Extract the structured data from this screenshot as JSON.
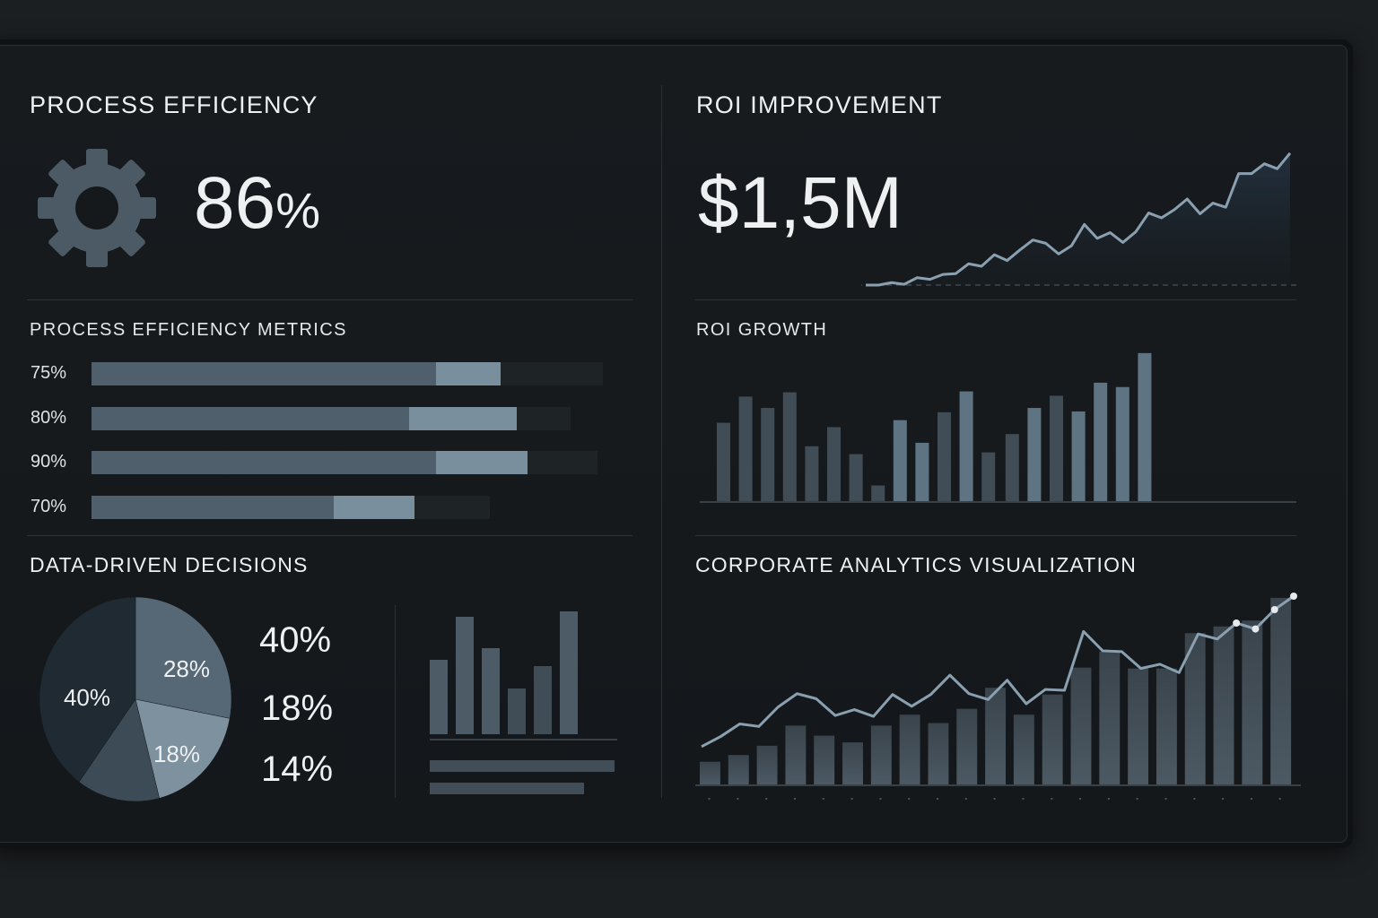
{
  "process_efficiency": {
    "title": "PROCESS EFFICIENCY",
    "icon": "gear-icon",
    "value": "86",
    "unit": "%"
  },
  "roi_improvement": {
    "title": "ROI IMPROVEMENT",
    "value": "$1,5M"
  },
  "metrics": {
    "title": "PROCESS EFFICIENCY METRICS",
    "rows": [
      {
        "label": "75%",
        "base": 0.64,
        "fill": 0.76,
        "track": 0.95
      },
      {
        "label": "80%",
        "base": 0.59,
        "fill": 0.79,
        "track": 0.89
      },
      {
        "label": "90%",
        "base": 0.64,
        "fill": 0.81,
        "track": 0.94
      },
      {
        "label": "70%",
        "base": 0.45,
        "fill": 0.6,
        "track": 0.74
      }
    ]
  },
  "decisions": {
    "title": "DATA-DRIVEN DECISIONS",
    "legend": [
      "40%",
      "18%",
      "14%"
    ]
  },
  "roi_growth": {
    "title": "ROI GROWTH"
  },
  "corporate": {
    "title": "CORPORATE ANALYTICS VISUALIZATION"
  },
  "colors": {
    "background": "#15191c",
    "bar": "#4a5863",
    "bar_light": "#6b8192",
    "line": "#8aa0b0",
    "pie_dark": "#1f2a32",
    "pie_mid": "#566876",
    "pie_light": "#7e919f",
    "pie_slate": "#3d4b56"
  },
  "chart_data": [
    {
      "type": "line",
      "chart": "roi-improvement-trend",
      "values": [
        0,
        0,
        3,
        1,
        9,
        7,
        13,
        14,
        26,
        23,
        37,
        30,
        43,
        55,
        51,
        38,
        48,
        74,
        57,
        64,
        52,
        65,
        88,
        82,
        92,
        105,
        87,
        100,
        95,
        136,
        136,
        148,
        142,
        161
      ],
      "ylim": [
        0,
        175
      ],
      "baseline": "dashed",
      "area_fill": true
    },
    {
      "type": "bar",
      "chart": "roi-growth",
      "values": [
        90,
        120,
        107,
        125,
        63,
        85,
        54,
        18,
        93,
        67,
        102,
        126,
        56,
        77,
        107,
        121,
        103,
        136,
        131,
        170
      ],
      "highlight": [
        false,
        false,
        false,
        false,
        false,
        false,
        false,
        false,
        true,
        true,
        false,
        true,
        false,
        false,
        true,
        false,
        true,
        true,
        true,
        true
      ],
      "ylim": [
        0,
        175
      ]
    },
    {
      "type": "pie",
      "chart": "data-driven-decisions",
      "slices": [
        {
          "label": "28%",
          "value": 28,
          "color": "#566876"
        },
        {
          "label": "18%",
          "value": 18,
          "color": "#7e919f"
        },
        {
          "label": "",
          "value": 14,
          "color": "#3d4b56"
        },
        {
          "label": "40%",
          "value": 40,
          "color": "#1f2a32"
        }
      ]
    },
    {
      "type": "bar",
      "chart": "decisions-bars",
      "values": [
        83,
        131,
        96,
        51,
        76,
        137
      ],
      "ylim": [
        0,
        140
      ]
    },
    {
      "type": "bar+line",
      "chart": "corporate-analytics",
      "bars": [
        27,
        35,
        46,
        70,
        58,
        50,
        70,
        83,
        73,
        90,
        115,
        83,
        107,
        139,
        158,
        138,
        138,
        180,
        188,
        195,
        222
      ],
      "line": [
        45,
        57,
        72,
        69,
        92,
        108,
        102,
        82,
        89,
        81,
        107,
        93,
        107,
        130,
        108,
        101,
        124,
        96,
        113,
        112,
        182,
        159,
        158,
        138,
        143,
        133,
        179,
        173,
        192,
        185,
        208,
        224
      ],
      "line_markers_last": 4,
      "ylim": [
        0,
        240
      ]
    }
  ]
}
